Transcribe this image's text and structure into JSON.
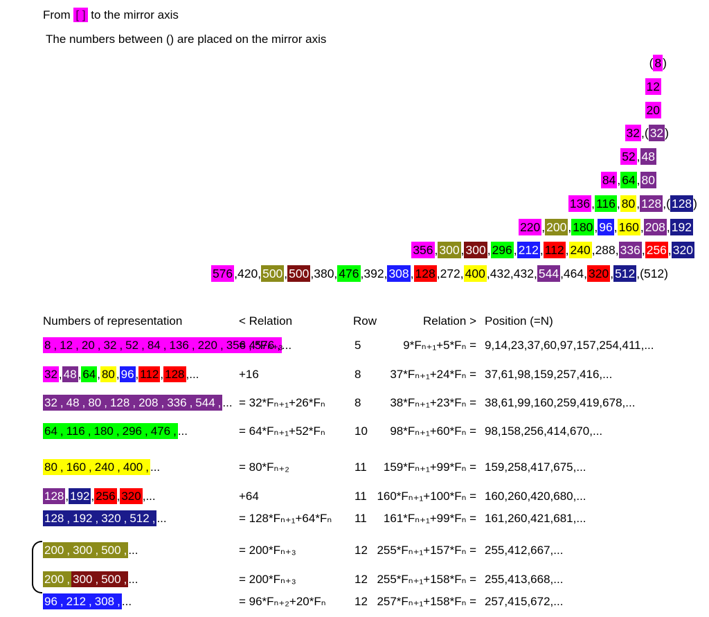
{
  "page": {
    "title_line1": {
      "pre": "From ",
      "box": "[ ]",
      "post": " to the mirror axis"
    },
    "subtitle": "The numbers between () are placed on the mirror axis"
  },
  "colors": {
    "m": {
      "bg": "#ff00ff",
      "fg": "#000000",
      "name": "magenta"
    },
    "p": {
      "bg": "#7b2b8e",
      "fg": "#ffffff",
      "name": "purple"
    },
    "g": {
      "bg": "#00ff00",
      "fg": "#000000",
      "name": "green"
    },
    "y": {
      "bg": "#ffff00",
      "fg": "#000000",
      "name": "yellow"
    },
    "o": {
      "bg": "#8b8b1a",
      "fg": "#ffffff",
      "name": "olive"
    },
    "dr": {
      "bg": "#7e1010",
      "fg": "#ffffff",
      "name": "dark-red"
    },
    "r": {
      "bg": "#ff0000",
      "fg": "#000000",
      "name": "red"
    },
    "rw": {
      "bg": "#ff0000",
      "fg": "#ffffff",
      "name": "red-white-text"
    },
    "b": {
      "bg": "#1c1cff",
      "fg": "#ffffff",
      "name": "blue"
    },
    "n": {
      "bg": "#1b1b8b",
      "fg": "#ffffff",
      "name": "navy"
    },
    "x": {
      "bg": "transparent",
      "fg": "#000000",
      "name": "plain"
    }
  },
  "triangle": {
    "rows": [
      {
        "segments": [
          [
            "(",
            "x"
          ],
          [
            "8",
            "m"
          ],
          [
            ")",
            "x"
          ]
        ]
      },
      {
        "segments": [
          [
            "12",
            "m"
          ]
        ]
      },
      {
        "segments": [
          [
            "20",
            "m"
          ]
        ]
      },
      {
        "segments": [
          [
            "32",
            "m"
          ],
          [
            ",(",
            "x"
          ],
          [
            "32",
            "p"
          ],
          [
            ")",
            "x"
          ]
        ]
      },
      {
        "segments": [
          [
            "52",
            "m"
          ],
          [
            ",",
            "x"
          ],
          [
            "48",
            "p"
          ]
        ]
      },
      {
        "segments": [
          [
            "84",
            "m"
          ],
          [
            ",",
            "x"
          ],
          [
            "64",
            "g"
          ],
          [
            ",",
            "x"
          ],
          [
            "80",
            "p"
          ]
        ]
      },
      {
        "segments": [
          [
            "136",
            "m"
          ],
          [
            ",",
            "x"
          ],
          [
            "116",
            "g"
          ],
          [
            ",",
            "x"
          ],
          [
            "80",
            "y"
          ],
          [
            ",",
            "x"
          ],
          [
            "128",
            "p"
          ],
          [
            ",(",
            "x"
          ],
          [
            "128",
            "n"
          ],
          [
            ")",
            "x"
          ]
        ]
      },
      {
        "segments": [
          [
            "220",
            "m"
          ],
          [
            ",",
            "x"
          ],
          [
            "200",
            "o"
          ],
          [
            ",",
            "x"
          ],
          [
            "180",
            "g"
          ],
          [
            ",",
            "x"
          ],
          [
            "96",
            "b"
          ],
          [
            ",",
            "x"
          ],
          [
            "160",
            "y"
          ],
          [
            ",",
            "x"
          ],
          [
            "208",
            "p"
          ],
          [
            ",",
            "x"
          ],
          [
            "192",
            "n"
          ]
        ]
      },
      {
        "segments": [
          [
            "356",
            "m"
          ],
          [
            ",",
            "x"
          ],
          [
            "300",
            "o"
          ],
          [
            ",",
            "x"
          ],
          [
            "300",
            "dr"
          ],
          [
            ",",
            "x"
          ],
          [
            "296",
            "g"
          ],
          [
            ",",
            "x"
          ],
          [
            "212",
            "b"
          ],
          [
            ",",
            "x"
          ],
          [
            "112",
            "r"
          ],
          [
            ",",
            "x"
          ],
          [
            "240",
            "y"
          ],
          [
            ",288,",
            "x"
          ],
          [
            "336",
            "p"
          ],
          [
            ",",
            "x"
          ],
          [
            "256",
            "rw"
          ],
          [
            ",",
            "x"
          ],
          [
            "320",
            "n"
          ]
        ]
      },
      {
        "segments": [
          [
            "576",
            "m"
          ],
          [
            ",420,",
            "x"
          ],
          [
            "500",
            "o"
          ],
          [
            ",",
            "x"
          ],
          [
            "500",
            "dr"
          ],
          [
            ",380,",
            "x"
          ],
          [
            "476",
            "g"
          ],
          [
            ",392,",
            "x"
          ],
          [
            "308",
            "b"
          ],
          [
            ",",
            "x"
          ],
          [
            "128",
            "r"
          ],
          [
            ",272,",
            "x"
          ],
          [
            "400",
            "y"
          ],
          [
            ",432,432,",
            "x"
          ],
          [
            "544",
            "p"
          ],
          [
            ",464,",
            "x"
          ],
          [
            "320",
            "r"
          ],
          [
            ",",
            "x"
          ],
          [
            "512",
            "n"
          ],
          [
            ",(512)",
            "x"
          ]
        ]
      }
    ]
  },
  "table": {
    "headers": [
      "Numbers of representation",
      "< Relation",
      "Row",
      "Relation >",
      "Position (=N)"
    ],
    "rows": [
      {
        "numbers": [
          [
            "8",
            "m"
          ],
          [
            "12",
            "m"
          ],
          [
            "20",
            "m"
          ],
          [
            "32",
            "m"
          ],
          [
            "52",
            "m"
          ],
          [
            "84",
            "m"
          ],
          [
            "136",
            "m"
          ],
          [
            "220",
            "m"
          ],
          [
            "356",
            "m"
          ],
          [
            "576",
            "m"
          ]
        ],
        "comma_style": "chip",
        "relation_left": "= 4*Fₙ₊₃",
        "row": "5",
        "relation_right": "9*Fₙ₊₁+5*Fₙ =",
        "position": "9,14,23,37,60,97,157,254,411,..."
      },
      {
        "numbers": [
          [
            "32",
            "m"
          ],
          [
            "48",
            "p"
          ],
          [
            "64",
            "g"
          ],
          [
            "80",
            "y"
          ],
          [
            "96",
            "b"
          ],
          [
            "112",
            "r"
          ],
          [
            "128",
            "r"
          ]
        ],
        "comma_style": "plain",
        "relation_left": "+16",
        "row": "8",
        "relation_right": "37*Fₙ₊₁+24*Fₙ =",
        "position": "37,61,98,159,257,416,..."
      },
      {
        "numbers": [
          [
            "32",
            "p"
          ],
          [
            "48",
            "p"
          ],
          [
            "80",
            "p"
          ],
          [
            "128",
            "p"
          ],
          [
            "208",
            "p"
          ],
          [
            "336",
            "p"
          ],
          [
            "544",
            "p"
          ]
        ],
        "comma_style": "chip",
        "relation_left": "= 32*Fₙ₊₁+26*Fₙ",
        "row": "8",
        "relation_right": "38*Fₙ₊₁+23*Fₙ =",
        "position": "38,61,99,160,259,419,678,..."
      },
      {
        "numbers": [
          [
            "64",
            "g"
          ],
          [
            "116",
            "g"
          ],
          [
            "180",
            "g"
          ],
          [
            "296",
            "g"
          ],
          [
            "476",
            "g"
          ]
        ],
        "comma_style": "chip",
        "relation_left": "= 64*Fₙ₊₁+52*Fₙ",
        "row": "10",
        "relation_right": "98*Fₙ₊₁+60*Fₙ =",
        "position": "98,158,256,414,670,..."
      },
      {
        "numbers": [
          [
            "80",
            "y"
          ],
          [
            "160",
            "y"
          ],
          [
            "240",
            "y"
          ],
          [
            "400",
            "y"
          ]
        ],
        "comma_style": "chip",
        "relation_left": "= 80*Fₙ₊₂",
        "row": "11",
        "relation_right": "159*Fₙ₊₁+99*Fₙ =",
        "position": "159,258,417,675,..."
      },
      {
        "numbers": [
          [
            "128",
            "p"
          ],
          [
            "192",
            "n"
          ],
          [
            "256",
            "r"
          ],
          [
            "320",
            "r"
          ]
        ],
        "comma_style": "plain",
        "relation_left": "+64",
        "row": "11",
        "relation_right": "160*Fₙ₊₁+100*Fₙ =",
        "position": "160,260,420,680,..."
      },
      {
        "numbers": [
          [
            "128",
            "n"
          ],
          [
            "192",
            "n"
          ],
          [
            "320",
            "n"
          ],
          [
            "512",
            "n"
          ]
        ],
        "comma_style": "chip",
        "relation_left": "= 128*Fₙ₊₁+64*Fₙ",
        "row": "11",
        "relation_right": "161*Fₙ₊₁+99*Fₙ =",
        "position": "161,260,421,681,..."
      },
      {
        "numbers": [
          [
            "200",
            "o"
          ],
          [
            "300",
            "o"
          ],
          [
            "500",
            "o"
          ]
        ],
        "comma_style": "chip",
        "relation_left": "= 200*Fₙ₊₃",
        "row": "12",
        "relation_right": "255*Fₙ₊₁+157*Fₙ =",
        "position": "255,412,667,..."
      },
      {
        "numbers": [
          [
            "200",
            "o"
          ],
          [
            "300",
            "dr"
          ],
          [
            "500",
            "dr"
          ]
        ],
        "comma_style": "chip",
        "relation_left": "= 200*Fₙ₊₃",
        "row": "12",
        "relation_right": "255*Fₙ₊₁+158*Fₙ =",
        "position": "255,413,668,..."
      },
      {
        "numbers": [
          [
            "96",
            "b"
          ],
          [
            "212",
            "b"
          ],
          [
            "308",
            "b"
          ]
        ],
        "comma_style": "chip",
        "relation_left": "= 96*Fₙ₊₂+20*Fₙ",
        "row": "12",
        "relation_right": "257*Fₙ₊₁+158*Fₙ =",
        "position": "257,415,672,..."
      }
    ]
  }
}
